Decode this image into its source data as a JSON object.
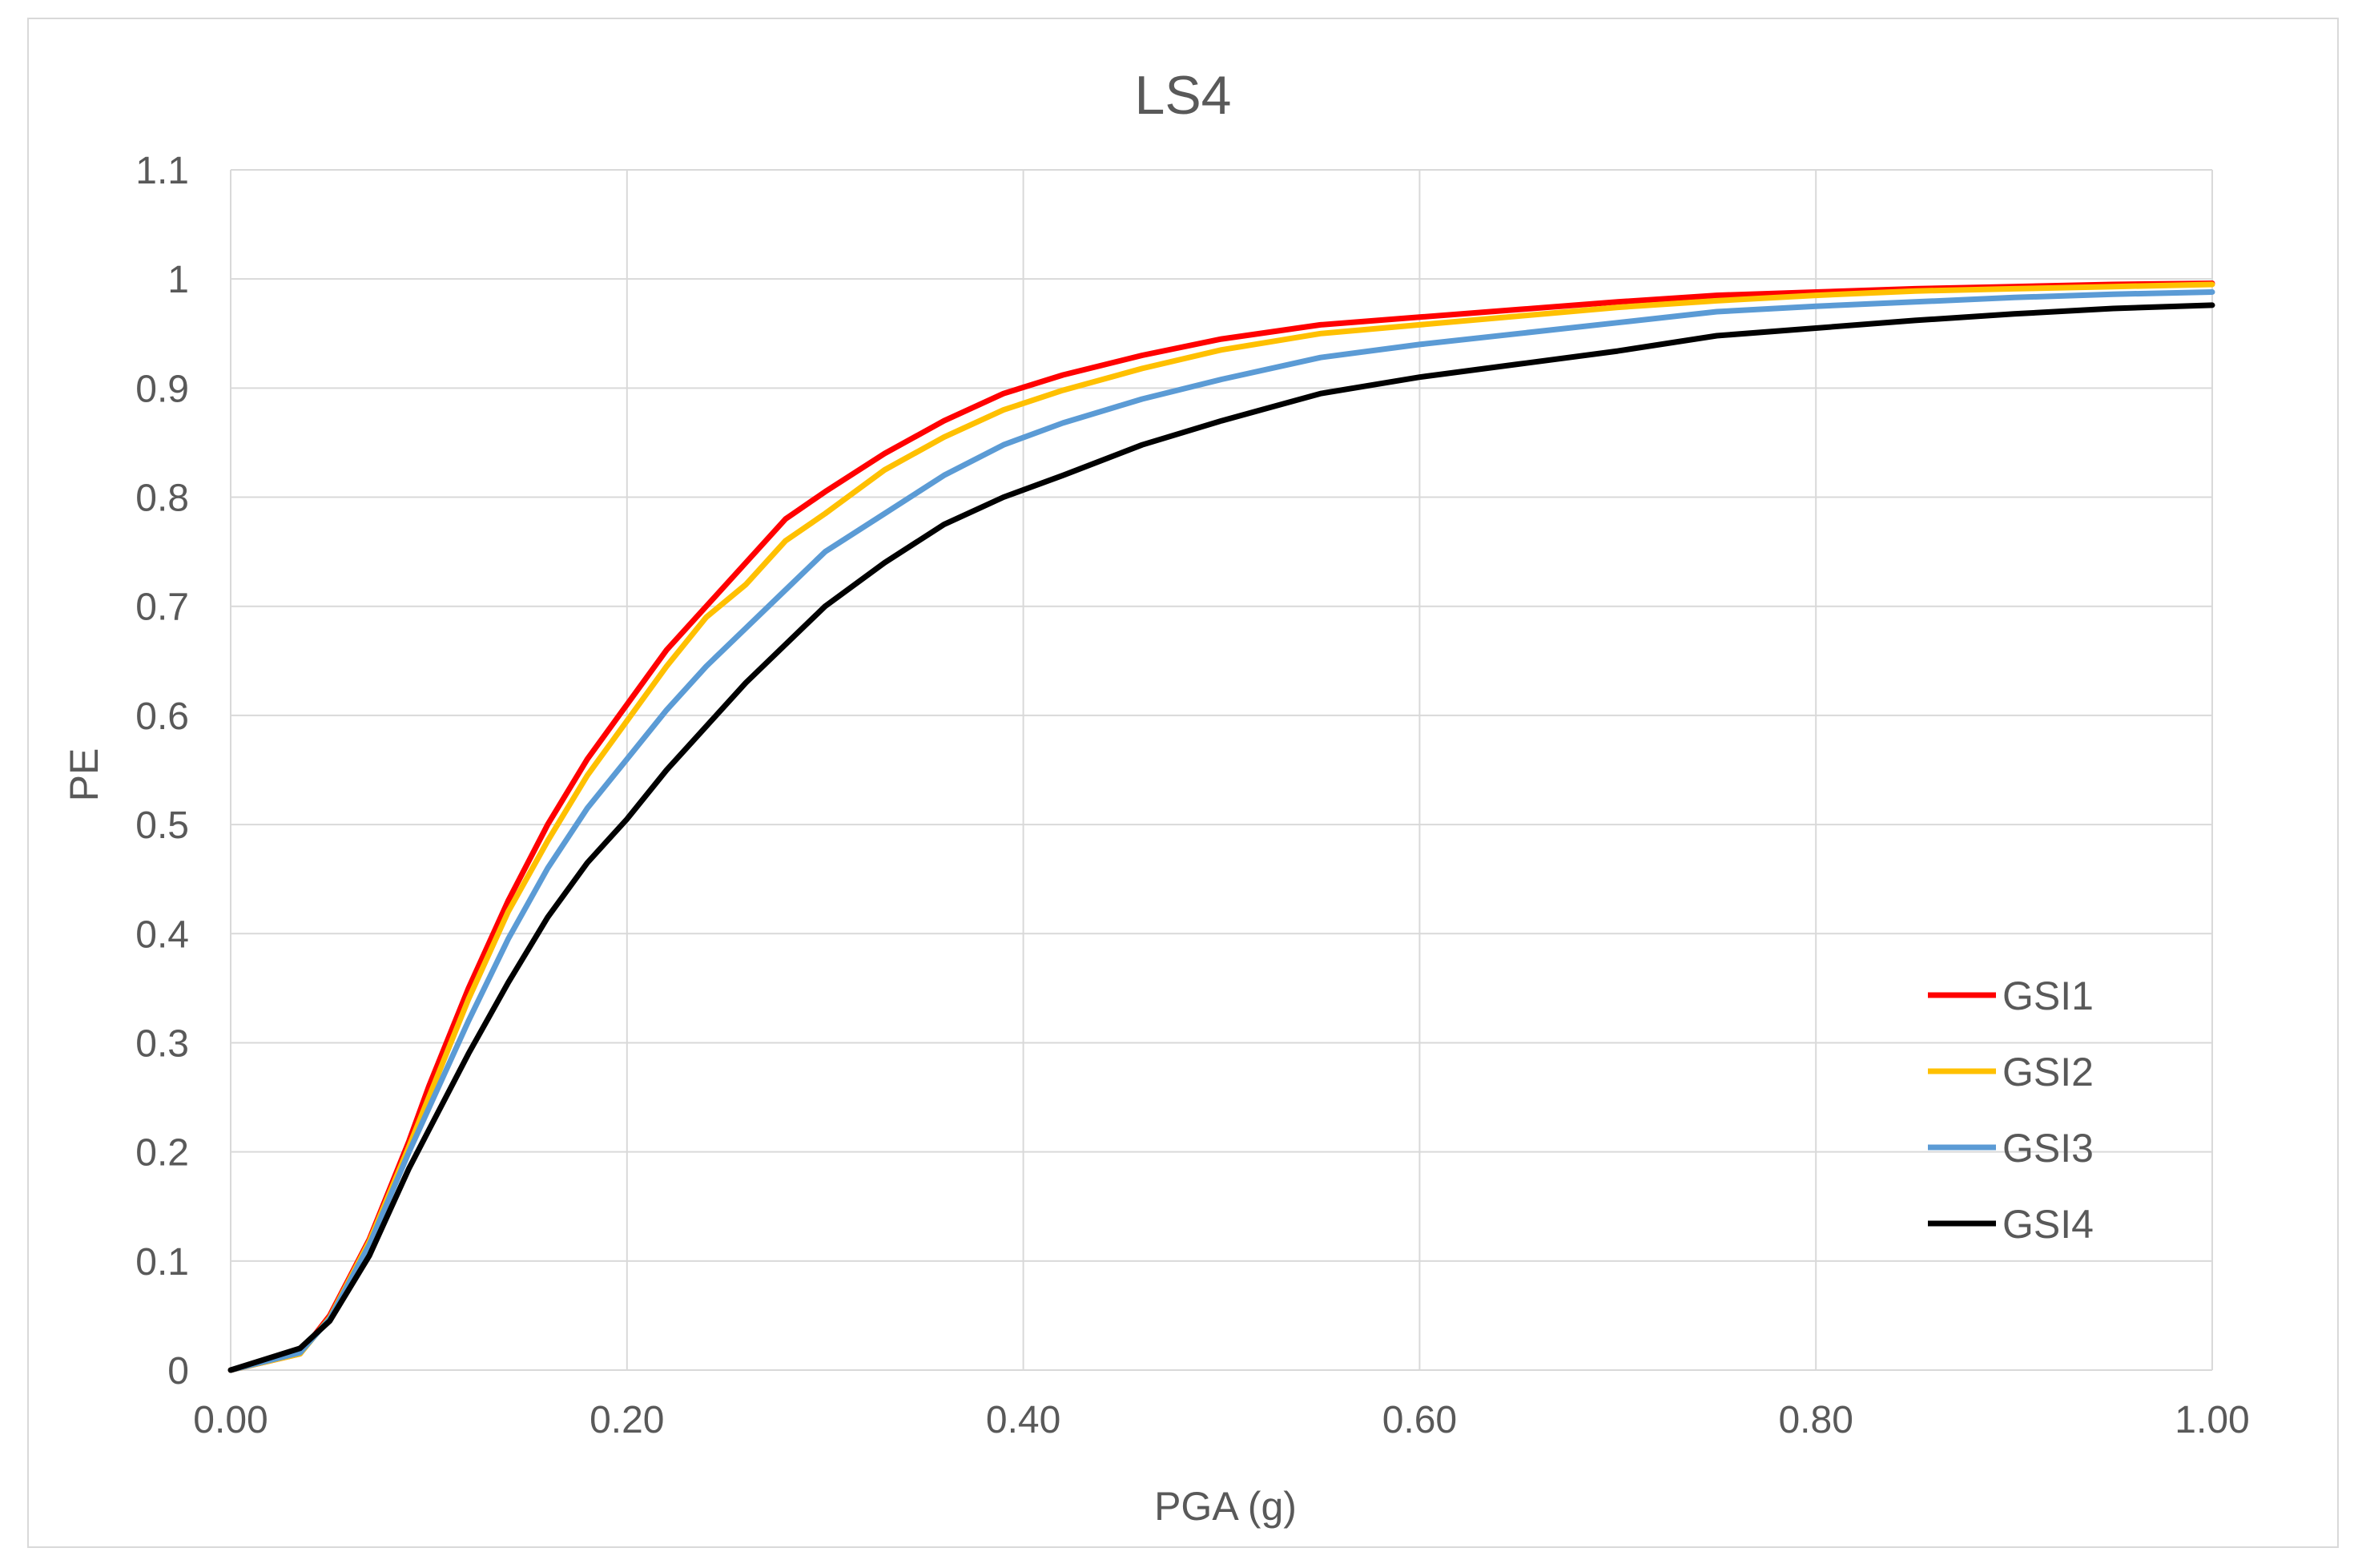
{
  "chart_data": {
    "type": "line",
    "title": "LS4",
    "xlabel": "PGA (g)",
    "ylabel": "PE",
    "xlim": [
      0,
      1.0
    ],
    "ylim": [
      0,
      1.1
    ],
    "grid": true,
    "legend_position": "bottom-right",
    "x_ticks": [
      0.0,
      0.2,
      0.4,
      0.6,
      0.8,
      1.0
    ],
    "x_tick_labels": [
      "0.00",
      "0.20",
      "0.40",
      "0.60",
      "0.80",
      "1.00"
    ],
    "y_ticks": [
      0,
      0.1,
      0.2,
      0.3,
      0.4,
      0.5,
      0.6,
      0.7,
      0.8,
      0.9,
      1,
      1.1
    ],
    "y_tick_labels": [
      "0",
      "0.1",
      "0.2",
      "0.3",
      "0.4",
      "0.5",
      "0.6",
      "0.7",
      "0.8",
      "0.9",
      "1",
      "1.1"
    ],
    "x": [
      0.0,
      0.035,
      0.05,
      0.07,
      0.09,
      0.1,
      0.12,
      0.14,
      0.16,
      0.18,
      0.2,
      0.22,
      0.24,
      0.26,
      0.28,
      0.3,
      0.33,
      0.36,
      0.39,
      0.42,
      0.46,
      0.5,
      0.55,
      0.6,
      0.65,
      0.7,
      0.75,
      0.8,
      0.85,
      0.9,
      0.95,
      1.0
    ],
    "series": [
      {
        "name": "GSI1",
        "color": "#ff0000",
        "values": [
          0.0,
          0.015,
          0.05,
          0.12,
          0.21,
          0.26,
          0.35,
          0.43,
          0.5,
          0.56,
          0.61,
          0.66,
          0.7,
          0.74,
          0.78,
          0.805,
          0.84,
          0.87,
          0.895,
          0.912,
          0.93,
          0.945,
          0.958,
          0.965,
          0.972,
          0.979,
          0.985,
          0.988,
          0.991,
          0.993,
          0.995,
          0.996
        ]
      },
      {
        "name": "GSI2",
        "color": "#ffc000",
        "values": [
          0.0,
          0.015,
          0.048,
          0.118,
          0.205,
          0.25,
          0.34,
          0.42,
          0.485,
          0.545,
          0.595,
          0.645,
          0.69,
          0.72,
          0.76,
          0.785,
          0.825,
          0.855,
          0.88,
          0.898,
          0.918,
          0.935,
          0.95,
          0.958,
          0.966,
          0.974,
          0.98,
          0.985,
          0.989,
          0.991,
          0.993,
          0.995
        ]
      },
      {
        "name": "GSI3",
        "color": "#5b9bd5",
        "values": [
          0.0,
          0.016,
          0.047,
          0.115,
          0.2,
          0.24,
          0.32,
          0.395,
          0.46,
          0.515,
          0.56,
          0.605,
          0.645,
          0.68,
          0.715,
          0.75,
          0.785,
          0.82,
          0.848,
          0.868,
          0.89,
          0.908,
          0.928,
          0.94,
          0.95,
          0.96,
          0.97,
          0.975,
          0.979,
          0.983,
          0.986,
          0.988
        ]
      },
      {
        "name": "GSI4",
        "color": "#000000",
        "values": [
          0.0,
          0.02,
          0.045,
          0.105,
          0.185,
          0.22,
          0.29,
          0.355,
          0.415,
          0.465,
          0.505,
          0.55,
          0.59,
          0.63,
          0.665,
          0.7,
          0.74,
          0.775,
          0.8,
          0.82,
          0.848,
          0.87,
          0.895,
          0.91,
          0.922,
          0.934,
          0.948,
          0.955,
          0.962,
          0.968,
          0.973,
          0.976
        ]
      }
    ]
  }
}
